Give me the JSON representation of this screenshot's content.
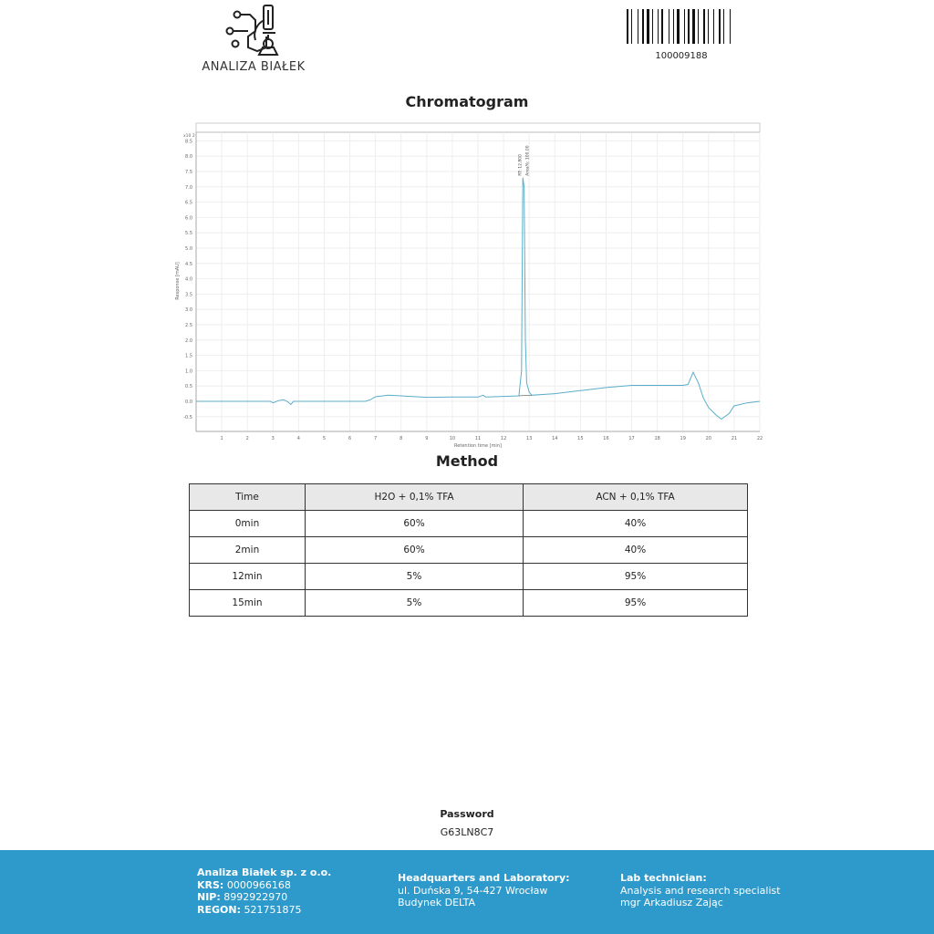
{
  "header": {
    "logo_text": "ANALIZA BIAŁEK",
    "barcode_number": "100009188"
  },
  "chromatogram": {
    "title": "Chromatogram"
  },
  "chart_data": {
    "type": "line",
    "xlabel": "Retention time [min]",
    "ylabel": "Response [mAU]",
    "y_multiplier": "x10 2",
    "xlim": [
      0,
      22
    ],
    "ylim": [
      -1.0,
      8.7
    ],
    "xticks": [
      1,
      2,
      3,
      4,
      5,
      6,
      7,
      8,
      9,
      10,
      11,
      12,
      13,
      14,
      15,
      16,
      17,
      18,
      19,
      20,
      21,
      22
    ],
    "yticks": [
      "8.5",
      "8.0",
      "7.5",
      "7.0",
      "6.5",
      "6.0",
      "5.5",
      "5.0",
      "4.5",
      "4.0",
      "3.5",
      "3.0",
      "2.5",
      "2.0",
      "1.5",
      "1.0",
      "0.5",
      "0.0",
      "-0.5"
    ],
    "grid": true,
    "line_color": "#5aaec8",
    "peak_labels": [
      "RT: 12.800",
      "Area%: 100.00"
    ],
    "series": [
      {
        "x": [
          0,
          2.9,
          3.0,
          3.2,
          3.4,
          3.5,
          3.6,
          3.7,
          3.8,
          6.6,
          6.8,
          7.0,
          7.5,
          8,
          9,
          10,
          11,
          11.2,
          11.3,
          12,
          12.6,
          12.7,
          12.75,
          12.8,
          12.85,
          12.9,
          13.0,
          13.1,
          14,
          15,
          16,
          17,
          18,
          19,
          19.2,
          19.4,
          19.6,
          19.8,
          20,
          20.3,
          20.5,
          20.8,
          21,
          21.5,
          22
        ],
        "y": [
          0,
          0,
          -0.05,
          0.02,
          0.05,
          0.02,
          -0.03,
          -0.1,
          0,
          0,
          0.05,
          0.15,
          0.2,
          0.18,
          0.13,
          0.14,
          0.14,
          0.2,
          0.14,
          0.16,
          0.18,
          1.0,
          7.3,
          7.0,
          2.0,
          0.6,
          0.3,
          0.2,
          0.25,
          0.35,
          0.45,
          0.52,
          0.52,
          0.52,
          0.55,
          0.95,
          0.6,
          0.1,
          -0.2,
          -0.45,
          -0.58,
          -0.4,
          -0.15,
          -0.05,
          0
        ]
      }
    ]
  },
  "method": {
    "title": "Method",
    "headers": [
      "Time",
      "H2O + 0,1% TFA",
      "ACN + 0,1% TFA"
    ],
    "rows": [
      [
        "0min",
        "60%",
        "40%"
      ],
      [
        "2min",
        "60%",
        "40%"
      ],
      [
        "12min",
        "5%",
        "95%"
      ],
      [
        "15min",
        "5%",
        "95%"
      ]
    ]
  },
  "password": {
    "label": "Password",
    "value": "G63LN8C7"
  },
  "footer": {
    "company": "Analiza Białek sp. z o.o.",
    "krs_label": "KRS:",
    "krs": "0000966168",
    "nip_label": "NIP:",
    "nip": "8992922970",
    "regon_label": "REGON:",
    "regon": "521751875",
    "hq_title": "Headquarters and Laboratory:",
    "hq_line1": "ul. Duńska 9, 54-427 Wrocław",
    "hq_line2": "Budynek DELTA",
    "tech_title": "Lab technician:",
    "tech_line1": "Analysis and research specialist",
    "tech_line2": "mgr Arkadiusz Zając"
  }
}
